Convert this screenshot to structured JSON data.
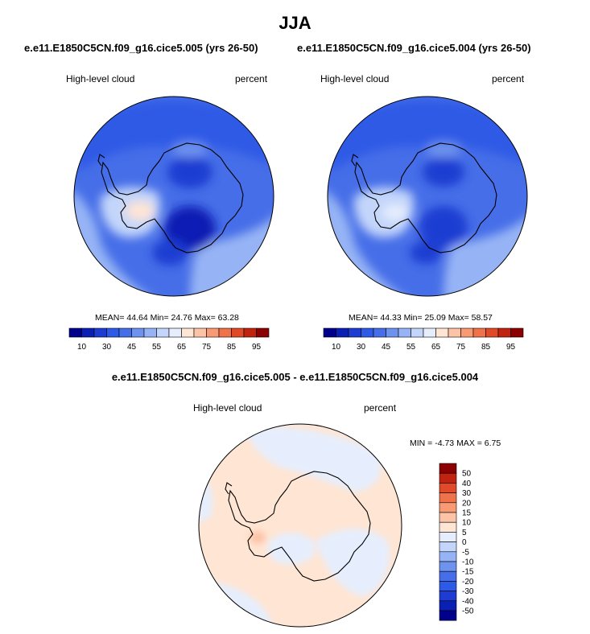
{
  "figure": {
    "season_title": "JJA",
    "case_a_title": "e.e11.E1850C5CN.f09_g16.cice5.005 (yrs 26-50)",
    "case_b_title": "e.e11.E1850C5CN.f09_g16.cice5.004 (yrs 26-50)",
    "diff_title": "e.e11.E1850C5CN.f09_g16.cice5.005 - e.e11.E1850C5CN.f09_g16.cice5.004"
  },
  "panels": {
    "a": {
      "variable": "High-level cloud",
      "units": "percent",
      "mean": "44.64",
      "min": "24.76",
      "max": "63.28",
      "stats_text": "MEAN=  44.64  Min=  24.76  Max=  63.28"
    },
    "b": {
      "variable": "High-level cloud",
      "units": "percent",
      "mean": "44.33",
      "min": "25.09",
      "max": "58.57",
      "stats_text": "MEAN=  44.33  Min=  25.09  Max=  58.57"
    },
    "diff": {
      "variable": "High-level cloud",
      "units": "percent",
      "min": "-4.73",
      "max": "6.75",
      "stats_text": "MIN =  -4.73 MAX =   6.75"
    }
  },
  "chart_data": [
    {
      "type": "heatmap",
      "projection": "south polar stereographic",
      "title": "e.e11.E1850C5CN.f09_g16.cice5.005 (yrs 26-50)",
      "variable": "High-level cloud",
      "units": "percent",
      "colorbar_levels": [
        10,
        20,
        30,
        40,
        45,
        50,
        55,
        60,
        65,
        70,
        75,
        80,
        85,
        90,
        95
      ],
      "colorbar_tick_labels": [
        "10",
        "30",
        "45",
        "55",
        "65",
        "75",
        "85",
        "95"
      ],
      "mean": 44.64,
      "min": 24.76,
      "max": 63.28
    },
    {
      "type": "heatmap",
      "projection": "south polar stereographic",
      "title": "e.e11.E1850C5CN.f09_g16.cice5.004 (yrs 26-50)",
      "variable": "High-level cloud",
      "units": "percent",
      "colorbar_levels": [
        10,
        20,
        30,
        40,
        45,
        50,
        55,
        60,
        65,
        70,
        75,
        80,
        85,
        90,
        95
      ],
      "colorbar_tick_labels": [
        "10",
        "30",
        "45",
        "55",
        "65",
        "75",
        "85",
        "95"
      ],
      "mean": 44.33,
      "min": 25.09,
      "max": 58.57
    },
    {
      "type": "heatmap",
      "projection": "south polar stereographic",
      "title": "e.e11.E1850C5CN.f09_g16.cice5.005 - e.e11.E1850C5CN.f09_g16.cice5.004",
      "variable": "High-level cloud",
      "units": "percent",
      "colorbar_levels": [
        50,
        40,
        30,
        20,
        15,
        10,
        5,
        0,
        -5,
        -10,
        -15,
        -20,
        -30,
        -40,
        -50
      ],
      "colorbar_tick_labels": [
        "50",
        "40",
        "30",
        "20",
        "15",
        "10",
        "5",
        "0",
        "-5",
        "-10",
        "-15",
        "-20",
        "-30",
        "-40",
        "-50"
      ],
      "min": -4.73,
      "max": 6.75
    }
  ],
  "palettes": {
    "abs_colors": [
      "#00008c",
      "#0a1fb4",
      "#1e3cd2",
      "#2d5ae6",
      "#466ee8",
      "#6e93ee",
      "#96b4f5",
      "#c3d5fa",
      "#e6eefd",
      "#ffe5d3",
      "#fcc3a6",
      "#f89b74",
      "#f0724a",
      "#e14a28",
      "#c02410",
      "#8b0000"
    ],
    "diff_colors": [
      "#8b0000",
      "#c02410",
      "#e14a28",
      "#f0724a",
      "#f89b74",
      "#fcc3a6",
      "#ffe5d3",
      "#e6eefd",
      "#c3d5fa",
      "#96b4f5",
      "#6e93ee",
      "#466ee8",
      "#2d5ae6",
      "#1e3cd2",
      "#0a1fb4",
      "#00008c"
    ],
    "coast": "#000000"
  }
}
